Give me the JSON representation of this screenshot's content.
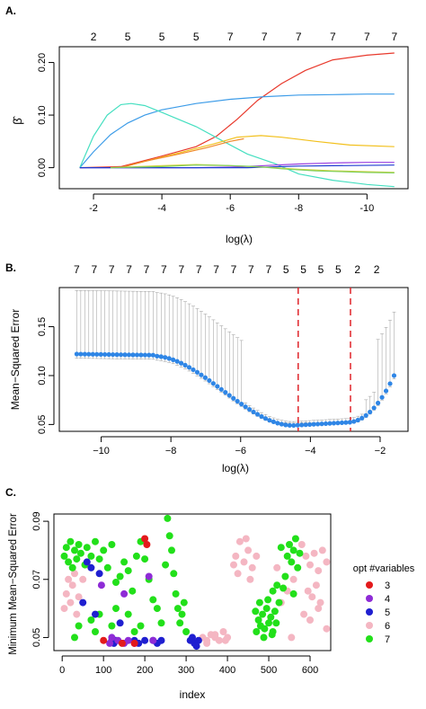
{
  "panels": {
    "a": {
      "label": "A.",
      "xlabel": "log(λ)",
      "ylabel": "β̂",
      "top_counts": [
        "2",
        "5",
        "5",
        "5",
        "7",
        "7",
        "7",
        "7",
        "7",
        "7"
      ],
      "x_ticks": [
        "-2",
        "-4",
        "-6",
        "-8",
        "-10"
      ],
      "y_ticks": [
        "0.00",
        "0.10",
        "0.20"
      ]
    },
    "b": {
      "label": "B.",
      "xlabel": "log(λ)",
      "ylabel": "Mean−Squared Error",
      "top_counts": [
        "7",
        "7",
        "7",
        "7",
        "7",
        "7",
        "7",
        "7",
        "7",
        "7",
        "7",
        "7",
        "5",
        "5",
        "5",
        "5",
        "2",
        "2"
      ],
      "x_ticks": [
        "−10",
        "−8",
        "−6",
        "−4",
        "−2"
      ],
      "y_ticks": [
        "0.05",
        "0.10",
        "0.15"
      ]
    },
    "c": {
      "label": "C.",
      "xlabel": "index",
      "ylabel": "Minimum Mean−Squared Error",
      "x_ticks": [
        "0",
        "100",
        "200",
        "300",
        "400",
        "500",
        "600"
      ],
      "y_ticks": [
        "0.05",
        "0.07",
        "0.09"
      ],
      "legend_title": "opt #variables",
      "legend": [
        {
          "label": "3",
          "color": "#e31a1c"
        },
        {
          "label": "4",
          "color": "#8e2bd6"
        },
        {
          "label": "5",
          "color": "#1f1fd0"
        },
        {
          "label": "6",
          "color": "#f4b6c2"
        },
        {
          "label": "7",
          "color": "#22e01a"
        }
      ]
    }
  },
  "chart_data": [
    {
      "type": "line",
      "xlim": [
        -1.5,
        -10.8
      ],
      "ylim": [
        -0.04,
        0.23
      ],
      "top_count_x": [
        -2,
        -3,
        -4,
        -5,
        -6,
        -7,
        -8,
        -9,
        -10,
        -10.8
      ],
      "series": [
        {
          "color": "#e8392c",
          "x": [
            -1.6,
            -2.8,
            -4,
            -5,
            -5.6,
            -6.2,
            -6.8,
            -7.5,
            -8.2,
            -9,
            -10,
            -10.8
          ],
          "y": [
            0,
            0.002,
            0.022,
            0.04,
            0.06,
            0.092,
            0.128,
            0.16,
            0.185,
            0.205,
            0.214,
            0.218
          ]
        },
        {
          "color": "#3d9ce8",
          "x": [
            -1.6,
            -2,
            -2.5,
            -3,
            -3.5,
            -4,
            -5,
            -6,
            -7,
            -8,
            -9,
            -10,
            -10.8
          ],
          "y": [
            0,
            0.03,
            0.063,
            0.085,
            0.1,
            0.11,
            0.122,
            0.13,
            0.135,
            0.138,
            0.139,
            0.14,
            0.14
          ]
        },
        {
          "color": "#45dfc0",
          "x": [
            -1.6,
            -2,
            -2.4,
            -2.8,
            -3.1,
            -3.5,
            -4,
            -5,
            -5.8,
            -6.5,
            -7.3,
            -8,
            -9,
            -10,
            -10.8
          ],
          "y": [
            0,
            0.06,
            0.1,
            0.12,
            0.122,
            0.118,
            0.105,
            0.078,
            0.05,
            0.026,
            0.008,
            -0.012,
            -0.024,
            -0.032,
            -0.036
          ]
        },
        {
          "color": "#f2c01c",
          "x": [
            -2.8,
            -3.5,
            -4.5,
            -5.5,
            -6.2,
            -6.9,
            -7.5,
            -8.5,
            -9.5,
            -10.8
          ],
          "y": [
            0,
            0.012,
            0.028,
            0.045,
            0.058,
            0.061,
            0.058,
            0.05,
            0.043,
            0.04
          ]
        },
        {
          "color": "#f08a2a",
          "x": [
            -2.8,
            -3.5,
            -4.5,
            -5.3,
            -6,
            -6.4
          ],
          "y": [
            0,
            0.012,
            0.026,
            0.038,
            0.05,
            0.055
          ]
        },
        {
          "color": "#9a3ee0",
          "x": [
            -1.6,
            -5,
            -6,
            -7,
            -8,
            -9,
            -10,
            -10.8
          ],
          "y": [
            0,
            0,
            0.001,
            0.004,
            0.007,
            0.009,
            0.01,
            0.01
          ]
        },
        {
          "color": "#1e3bd0",
          "x": [
            -1.6,
            -6.5,
            -8,
            -10.8
          ],
          "y": [
            0,
            0,
            0.003,
            0.005
          ]
        },
        {
          "color": "#d9d33a",
          "x": [
            -2.5,
            -4,
            -5,
            -6,
            -7,
            -8,
            -9,
            -10.8
          ],
          "y": [
            0,
            0.004,
            0.006,
            0.004,
            0.001,
            -0.003,
            -0.006,
            -0.009
          ]
        },
        {
          "color": "#7fcf5f",
          "x": [
            -2.5,
            -4,
            -5,
            -6,
            -6.8,
            -7.5,
            -8.5,
            -10,
            -10.8
          ],
          "y": [
            0,
            0.002,
            0.005,
            0.004,
            0.002,
            -0.002,
            -0.006,
            -0.009,
            -0.01
          ]
        }
      ]
    },
    {
      "type": "scatter",
      "xlim": [
        -10.8,
        -1.5
      ],
      "ylim": [
        0.043,
        0.19
      ],
      "top_count_x": [
        -10.7,
        -10.2,
        -9.7,
        -9.2,
        -8.7,
        -8.2,
        -7.7,
        -7.2,
        -6.7,
        -6.2,
        -5.7,
        -5.2,
        -4.7,
        -4.2,
        -3.7,
        -3.2,
        -2.65,
        -2.1
      ],
      "vlines": [
        -4.35,
        -2.85
      ],
      "points": {
        "x_start": -10.7,
        "x_end": -1.6,
        "n": 80
      },
      "error_bar_ratio": 0.35
    },
    {
      "type": "scatter",
      "xlim": [
        -20,
        650
      ],
      "ylim": [
        0.0455,
        0.0925
      ],
      "points": [
        [
          5,
          0.06,
          6
        ],
        [
          10,
          0.065,
          6
        ],
        [
          15,
          0.07,
          6
        ],
        [
          20,
          0.062,
          6
        ],
        [
          25,
          0.068,
          6
        ],
        [
          30,
          0.072,
          6
        ],
        [
          35,
          0.058,
          6
        ],
        [
          40,
          0.064,
          6
        ],
        [
          50,
          0.07,
          6
        ],
        [
          60,
          0.075,
          6
        ],
        [
          5,
          0.078,
          7
        ],
        [
          10,
          0.081,
          7
        ],
        [
          15,
          0.076,
          7
        ],
        [
          20,
          0.083,
          7
        ],
        [
          25,
          0.074,
          7
        ],
        [
          30,
          0.08,
          7
        ],
        [
          35,
          0.077,
          7
        ],
        [
          40,
          0.082,
          7
        ],
        [
          45,
          0.079,
          7
        ],
        [
          55,
          0.075,
          7
        ],
        [
          60,
          0.081,
          7
        ],
        [
          70,
          0.078,
          7
        ],
        [
          80,
          0.083,
          7
        ],
        [
          90,
          0.077,
          7
        ],
        [
          100,
          0.08,
          7
        ],
        [
          110,
          0.074,
          7
        ],
        [
          120,
          0.082,
          7
        ],
        [
          130,
          0.069,
          7
        ],
        [
          140,
          0.071,
          7
        ],
        [
          150,
          0.076,
          7
        ],
        [
          160,
          0.073,
          7
        ],
        [
          170,
          0.066,
          7
        ],
        [
          180,
          0.078,
          7
        ],
        [
          190,
          0.083,
          7
        ],
        [
          200,
          0.077,
          7
        ],
        [
          210,
          0.07,
          7
        ],
        [
          220,
          0.063,
          7
        ],
        [
          230,
          0.06,
          7
        ],
        [
          240,
          0.055,
          7
        ],
        [
          250,
          0.075,
          7
        ],
        [
          255,
          0.091,
          7
        ],
        [
          260,
          0.085,
          7
        ],
        [
          265,
          0.08,
          7
        ],
        [
          270,
          0.072,
          7
        ],
        [
          275,
          0.065,
          7
        ],
        [
          280,
          0.06,
          7
        ],
        [
          285,
          0.055,
          7
        ],
        [
          290,
          0.058,
          7
        ],
        [
          295,
          0.062,
          7
        ],
        [
          300,
          0.052,
          7
        ],
        [
          30,
          0.05,
          7
        ],
        [
          40,
          0.054,
          7
        ],
        [
          70,
          0.056,
          7
        ],
        [
          80,
          0.052,
          7
        ],
        [
          90,
          0.058,
          7
        ],
        [
          120,
          0.054,
          7
        ],
        [
          130,
          0.06,
          7
        ],
        [
          160,
          0.058,
          7
        ],
        [
          175,
          0.052,
          7
        ],
        [
          190,
          0.054,
          7
        ],
        [
          60,
          0.076,
          5
        ],
        [
          70,
          0.074,
          5
        ],
        [
          90,
          0.072,
          5
        ],
        [
          50,
          0.062,
          5
        ],
        [
          80,
          0.058,
          5
        ],
        [
          140,
          0.055,
          5
        ],
        [
          120,
          0.049,
          5
        ],
        [
          125,
          0.048,
          5
        ],
        [
          130,
          0.049,
          5
        ],
        [
          175,
          0.049,
          5
        ],
        [
          185,
          0.048,
          5
        ],
        [
          200,
          0.049,
          5
        ],
        [
          220,
          0.049,
          5
        ],
        [
          230,
          0.048,
          5
        ],
        [
          240,
          0.049,
          5
        ],
        [
          310,
          0.049,
          5
        ],
        [
          320,
          0.048,
          5
        ],
        [
          330,
          0.049,
          5
        ],
        [
          315,
          0.05,
          5
        ],
        [
          325,
          0.047,
          5
        ],
        [
          115,
          0.048,
          4
        ],
        [
          120,
          0.05,
          4
        ],
        [
          135,
          0.049,
          4
        ],
        [
          150,
          0.048,
          4
        ],
        [
          160,
          0.049,
          4
        ],
        [
          175,
          0.048,
          4
        ],
        [
          95,
          0.068,
          4
        ],
        [
          150,
          0.065,
          4
        ],
        [
          210,
          0.071,
          4
        ],
        [
          220,
          0.049,
          4
        ],
        [
          100,
          0.049,
          3
        ],
        [
          145,
          0.048,
          3
        ],
        [
          175,
          0.048,
          3
        ],
        [
          200,
          0.084,
          3
        ],
        [
          205,
          0.082,
          3
        ],
        [
          340,
          0.05,
          6
        ],
        [
          350,
          0.049,
          6
        ],
        [
          360,
          0.051,
          6
        ],
        [
          370,
          0.05,
          6
        ],
        [
          380,
          0.049,
          6
        ],
        [
          390,
          0.052,
          6
        ],
        [
          400,
          0.05,
          6
        ],
        [
          350,
          0.048,
          6
        ],
        [
          370,
          0.051,
          6
        ],
        [
          395,
          0.049,
          6
        ],
        [
          420,
          0.078,
          6
        ],
        [
          430,
          0.083,
          6
        ],
        [
          440,
          0.076,
          6
        ],
        [
          450,
          0.08,
          6
        ],
        [
          460,
          0.074,
          6
        ],
        [
          425,
          0.072,
          6
        ],
        [
          445,
          0.084,
          6
        ],
        [
          455,
          0.07,
          6
        ],
        [
          470,
          0.078,
          6
        ],
        [
          415,
          0.075,
          6
        ],
        [
          580,
          0.082,
          6
        ],
        [
          590,
          0.078,
          6
        ],
        [
          600,
          0.075,
          6
        ],
        [
          610,
          0.079,
          6
        ],
        [
          620,
          0.073,
          6
        ],
        [
          630,
          0.08,
          6
        ],
        [
          640,
          0.076,
          6
        ],
        [
          595,
          0.066,
          6
        ],
        [
          605,
          0.064,
          6
        ],
        [
          615,
          0.068,
          6
        ],
        [
          585,
          0.058,
          6
        ],
        [
          600,
          0.056,
          6
        ],
        [
          620,
          0.06,
          6
        ],
        [
          640,
          0.053,
          6
        ],
        [
          625,
          0.062,
          6
        ],
        [
          560,
          0.07,
          6
        ],
        [
          520,
          0.074,
          6
        ],
        [
          530,
          0.062,
          6
        ],
        [
          545,
          0.066,
          6
        ],
        [
          555,
          0.05,
          6
        ],
        [
          470,
          0.052,
          7
        ],
        [
          475,
          0.056,
          7
        ],
        [
          480,
          0.054,
          7
        ],
        [
          485,
          0.058,
          7
        ],
        [
          490,
          0.053,
          7
        ],
        [
          495,
          0.06,
          7
        ],
        [
          500,
          0.055,
          7
        ],
        [
          505,
          0.057,
          7
        ],
        [
          510,
          0.052,
          7
        ],
        [
          515,
          0.059,
          7
        ],
        [
          478,
          0.062,
          7
        ],
        [
          488,
          0.05,
          7
        ],
        [
          498,
          0.063,
          7
        ],
        [
          508,
          0.051,
          7
        ],
        [
          468,
          0.059,
          7
        ],
        [
          518,
          0.055,
          7
        ],
        [
          525,
          0.062,
          7
        ],
        [
          535,
          0.067,
          7
        ],
        [
          540,
          0.071,
          7
        ],
        [
          545,
          0.078,
          7
        ],
        [
          550,
          0.082,
          7
        ],
        [
          555,
          0.076,
          7
        ],
        [
          560,
          0.08,
          7
        ],
        [
          565,
          0.084,
          7
        ],
        [
          570,
          0.074,
          7
        ],
        [
          575,
          0.079,
          7
        ],
        [
          530,
          0.081,
          7
        ],
        [
          520,
          0.068,
          7
        ],
        [
          510,
          0.066,
          7
        ],
        [
          560,
          0.065,
          7
        ]
      ]
    }
  ]
}
